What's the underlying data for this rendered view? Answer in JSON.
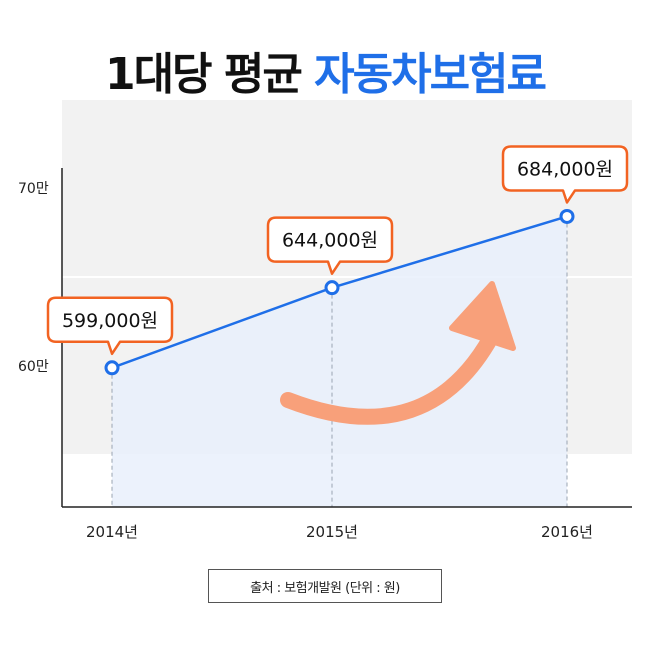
{
  "title": {
    "prefix": "1대당 평균",
    "highlight": "자동차보험료"
  },
  "chart_data": {
    "type": "line",
    "title": "1대당 평균 자동차보험료",
    "categories": [
      "2014년",
      "2015년",
      "2016년"
    ],
    "values": [
      599000,
      644000,
      684000
    ],
    "data_labels": [
      "599,000원",
      "644,000원",
      "684,000원"
    ],
    "y_ticks": [
      {
        "value": 600000,
        "label": "60만"
      },
      {
        "value": 700000,
        "label": "70만"
      }
    ],
    "ylim": [
      520000,
      730000
    ],
    "grid": "horizontal bands",
    "colors": {
      "line": "#1f6fe8",
      "area": "#e9f0fb",
      "band": "#f2f2f2",
      "callout_border": "#f26322",
      "trend_arrow": "#f8a07a"
    }
  },
  "source": "출처 : 보험개발원 (단위 : 원)"
}
